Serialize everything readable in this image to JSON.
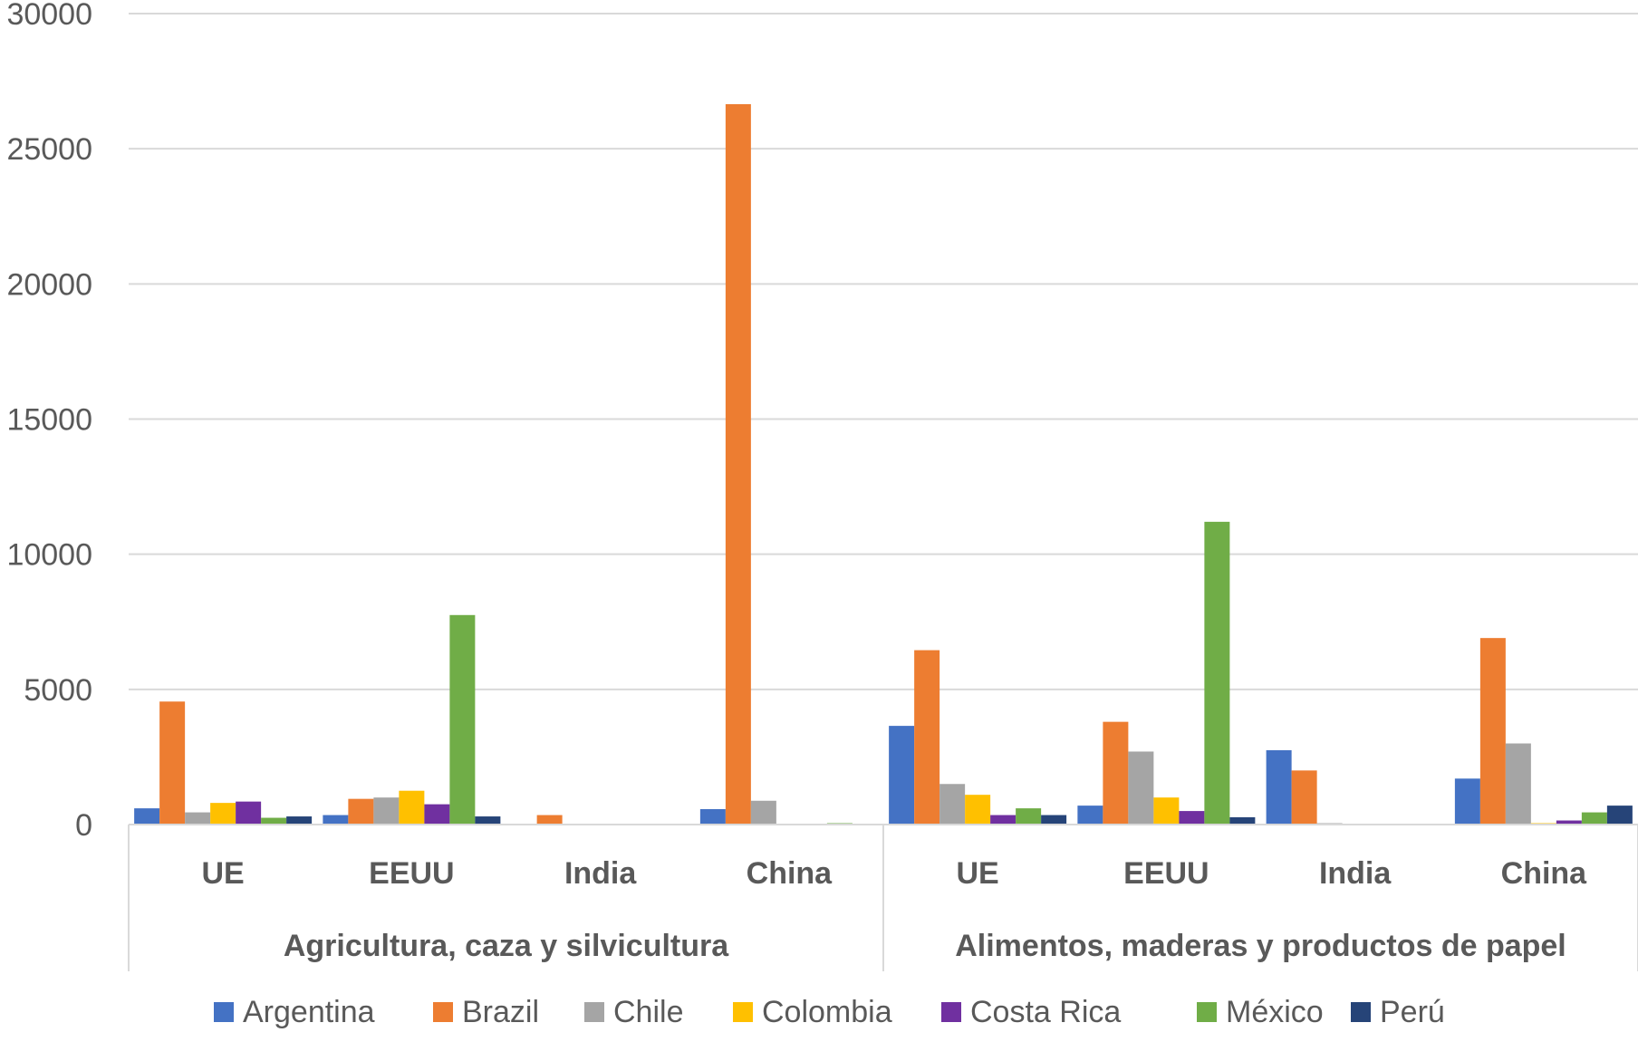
{
  "chart_data": {
    "type": "bar",
    "title": "",
    "xlabel": "",
    "ylabel": "",
    "ylim": [
      0,
      30000
    ],
    "yticks": [
      "0",
      "5000",
      "10000",
      "15000",
      "20000",
      "25000",
      "30000"
    ],
    "grid": true,
    "legend_position": "bottom",
    "groups": [
      {
        "label": "Agricultura, caza y silvicultura",
        "categories": [
          "UE",
          "EEUU",
          "India",
          "China"
        ]
      },
      {
        "label": "Alimentos, maderas y productos de papel",
        "categories": [
          "UE",
          "EEUU",
          "India",
          "China"
        ]
      }
    ],
    "categories": [
      "UE",
      "EEUU",
      "India",
      "China",
      "UE",
      "EEUU",
      "India",
      "China"
    ],
    "series": [
      {
        "name": "Argentina",
        "color": "#4472C4",
        "values": [
          600,
          350,
          0,
          570,
          3650,
          700,
          2750,
          1700
        ]
      },
      {
        "name": "Brazil",
        "color": "#ED7D31",
        "values": [
          4550,
          950,
          350,
          26650,
          6450,
          3800,
          2000,
          6900
        ]
      },
      {
        "name": "Chile",
        "color": "#A5A5A5",
        "values": [
          450,
          1000,
          0,
          880,
          1500,
          2700,
          50,
          3000
        ]
      },
      {
        "name": "Colombia",
        "color": "#FFC000",
        "values": [
          800,
          1250,
          0,
          0,
          1100,
          1000,
          0,
          50
        ]
      },
      {
        "name": "Costa Rica",
        "color": "#7030A0",
        "values": [
          850,
          750,
          0,
          0,
          350,
          500,
          0,
          150
        ]
      },
      {
        "name": "México",
        "color": "#70AD47",
        "values": [
          250,
          7750,
          0,
          50,
          600,
          11200,
          0,
          450
        ]
      },
      {
        "name": "Perú",
        "color": "#264478",
        "values": [
          300,
          300,
          0,
          30,
          350,
          270,
          0,
          700
        ]
      }
    ]
  }
}
